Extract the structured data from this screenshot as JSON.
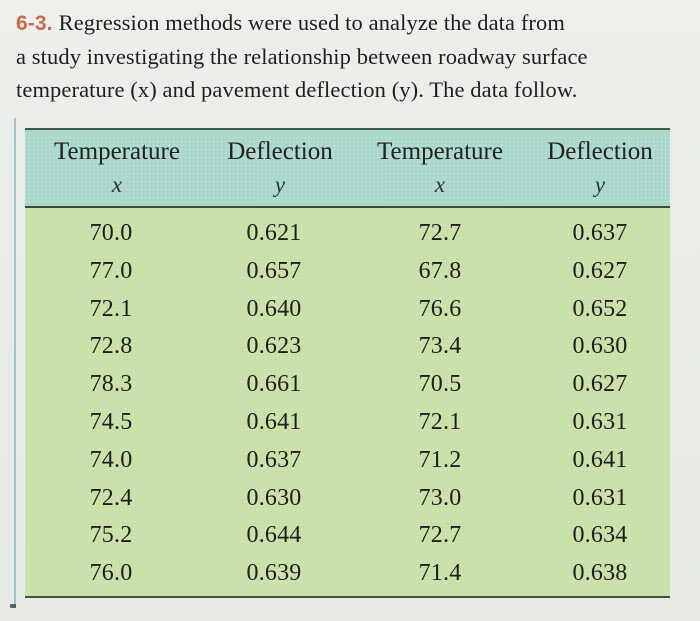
{
  "problem": {
    "number": "6-3.",
    "line1": "Regression methods were used to analyze the data from",
    "line2": "a study investigating the relationship between roadway surface",
    "line3": "temperature (x) and pavement deflection (y). The data follow."
  },
  "table": {
    "headers": [
      {
        "label": "Temperature",
        "var": "x"
      },
      {
        "label": "Deflection",
        "var": "y"
      },
      {
        "label": "Temperature",
        "var": "x"
      },
      {
        "label": "Deflection",
        "var": "y"
      }
    ],
    "rows": [
      [
        "70.0",
        "0.621",
        "72.7",
        "0.637"
      ],
      [
        "77.0",
        "0.657",
        "67.8",
        "0.627"
      ],
      [
        "72.1",
        "0.640",
        "76.6",
        "0.652"
      ],
      [
        "72.8",
        "0.623",
        "73.4",
        "0.630"
      ],
      [
        "78.3",
        "0.661",
        "70.5",
        "0.627"
      ],
      [
        "74.5",
        "0.641",
        "72.1",
        "0.631"
      ],
      [
        "74.0",
        "0.637",
        "71.2",
        "0.641"
      ],
      [
        "72.4",
        "0.630",
        "73.0",
        "0.631"
      ],
      [
        "75.2",
        "0.644",
        "72.7",
        "0.634"
      ],
      [
        "76.0",
        "0.639",
        "71.4",
        "0.638"
      ]
    ]
  },
  "colors": {
    "problem_number": "#c96b4d",
    "header_band": "#a8d6ca",
    "table_body": "#c8dfa6",
    "rule": "#394b3f"
  }
}
